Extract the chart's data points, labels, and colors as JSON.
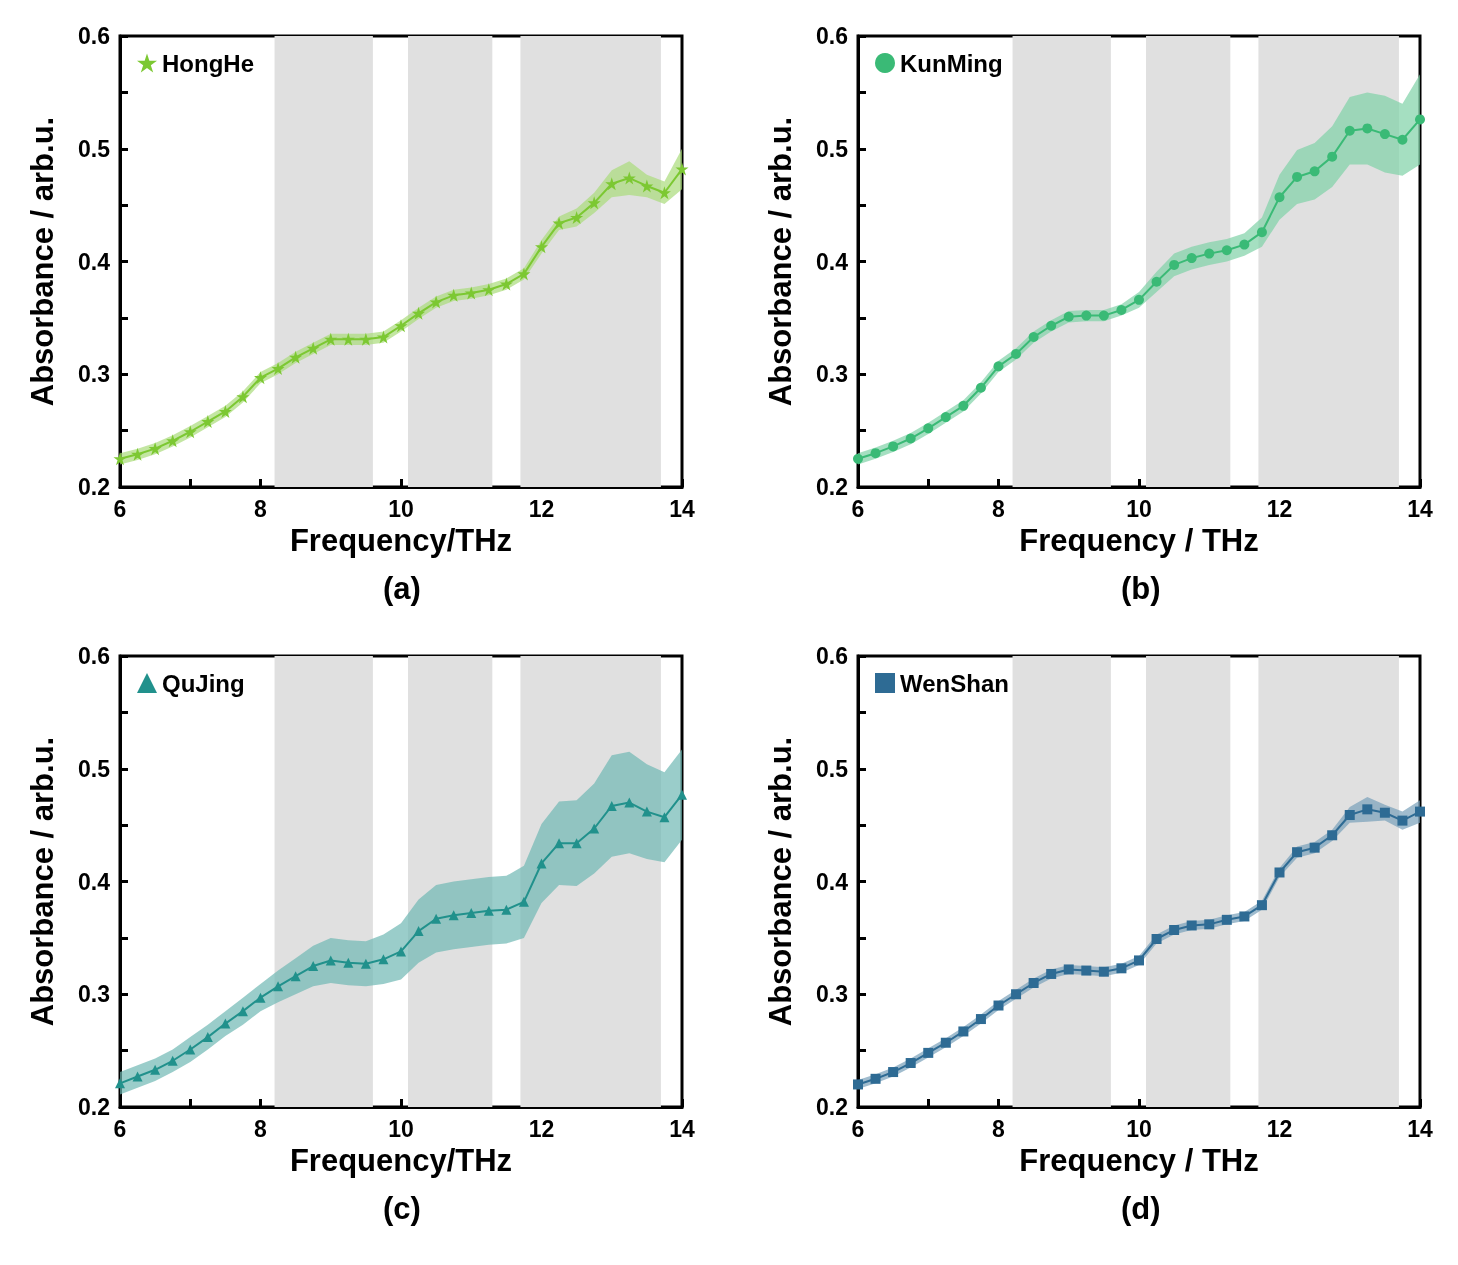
{
  "chart_data": [
    {
      "type": "line",
      "xlabel": "Frequency/THz",
      "ylabel": "Absorbance / arb.u.",
      "annotations": [
        "(a)"
      ],
      "marker": "star",
      "legend": "top left",
      "x": [
        6,
        6.25,
        6.5,
        6.75,
        7,
        7.25,
        7.5,
        7.75,
        8,
        8.25,
        8.5,
        8.75,
        9,
        9.25,
        9.5,
        9.75,
        10,
        10.25,
        10.5,
        10.75,
        11,
        11.25,
        11.5,
        11.75,
        12,
        12.25,
        12.5,
        12.75,
        13,
        13.25,
        13.5,
        13.75,
        14
      ],
      "xlim": [
        6,
        14
      ],
      "xticks": [
        6,
        {
          "value": 7,
          "label": null
        },
        8,
        {
          "value": 9,
          "label": null
        },
        10,
        {
          "value": 11,
          "label": null
        },
        12,
        {
          "value": 13,
          "label": null
        },
        14
      ],
      "ylim": [
        0.2,
        0.6
      ],
      "yticks": [
        0.2,
        {
          "value": 0.25,
          "label": null
        },
        0.3,
        {
          "value": 0.35,
          "label": null
        },
        0.4,
        {
          "value": 0.45,
          "label": null
        },
        0.5,
        {
          "value": 0.55,
          "label": null
        },
        0.6
      ],
      "bands": [
        {
          "axis": "x",
          "from": 8.2,
          "to": 9.6,
          "color": "#e0e0e0"
        },
        {
          "axis": "x",
          "from": 10.1,
          "to": 11.3,
          "color": "#e0e0e0"
        },
        {
          "axis": "x",
          "from": 11.7,
          "to": 13.7,
          "color": "#e0e0e0"
        }
      ],
      "series": [
        {
          "name": "HongHe",
          "color": "#7cc832",
          "values": [
            0.225,
            0.229,
            0.234,
            0.241,
            0.249,
            0.258,
            0.267,
            0.28,
            0.297,
            0.305,
            0.315,
            0.323,
            0.331,
            0.331,
            0.331,
            0.333,
            0.343,
            0.354,
            0.364,
            0.37,
            0.372,
            0.375,
            0.38,
            0.389,
            0.413,
            0.434,
            0.439,
            0.452,
            0.469,
            0.474,
            0.467,
            0.461,
            0.482
          ],
          "lower": [
            0.22,
            0.224,
            0.229,
            0.236,
            0.244,
            0.253,
            0.262,
            0.275,
            0.292,
            0.3,
            0.31,
            0.318,
            0.326,
            0.326,
            0.326,
            0.328,
            0.338,
            0.349,
            0.359,
            0.365,
            0.367,
            0.37,
            0.375,
            0.384,
            0.407,
            0.428,
            0.431,
            0.443,
            0.457,
            0.459,
            0.457,
            0.451,
            0.464
          ],
          "upper": [
            0.23,
            0.234,
            0.239,
            0.246,
            0.254,
            0.263,
            0.272,
            0.285,
            0.302,
            0.31,
            0.32,
            0.328,
            0.336,
            0.336,
            0.336,
            0.338,
            0.348,
            0.359,
            0.369,
            0.375,
            0.377,
            0.38,
            0.385,
            0.394,
            0.419,
            0.44,
            0.447,
            0.461,
            0.481,
            0.489,
            0.477,
            0.471,
            0.5
          ]
        }
      ]
    },
    {
      "type": "line",
      "xlabel": "Frequency / THz",
      "ylabel": "Absorbance / arb.u.",
      "annotations": [
        "(b)"
      ],
      "marker": "circle",
      "legend": "top left",
      "x": [
        6,
        6.25,
        6.5,
        6.75,
        7,
        7.25,
        7.5,
        7.75,
        8,
        8.25,
        8.5,
        8.75,
        9,
        9.25,
        9.5,
        9.75,
        10,
        10.25,
        10.5,
        10.75,
        11,
        11.25,
        11.5,
        11.75,
        12,
        12.25,
        12.5,
        12.75,
        13,
        13.25,
        13.5,
        13.75,
        14
      ],
      "xlim": [
        6,
        14
      ],
      "xticks": [
        6,
        {
          "value": 7,
          "label": null
        },
        8,
        {
          "value": 9,
          "label": null
        },
        10,
        {
          "value": 11,
          "label": null
        },
        12,
        {
          "value": 13,
          "label": null
        },
        14
      ],
      "ylim": [
        0.2,
        0.6
      ],
      "yticks": [
        0.2,
        {
          "value": 0.25,
          "label": null
        },
        0.3,
        {
          "value": 0.35,
          "label": null
        },
        0.4,
        {
          "value": 0.45,
          "label": null
        },
        0.5,
        {
          "value": 0.55,
          "label": null
        },
        0.6
      ],
      "bands": [
        {
          "axis": "x",
          "from": 8.2,
          "to": 9.6,
          "color": "#e0e0e0"
        },
        {
          "axis": "x",
          "from": 10.1,
          "to": 11.3,
          "color": "#e0e0e0"
        },
        {
          "axis": "x",
          "from": 11.7,
          "to": 13.7,
          "color": "#e0e0e0"
        }
      ],
      "series": [
        {
          "name": "KunMing",
          "color": "#3aba76",
          "values": [
            0.225,
            0.23,
            0.236,
            0.243,
            0.252,
            0.262,
            0.272,
            0.288,
            0.307,
            0.318,
            0.333,
            0.343,
            0.351,
            0.352,
            0.352,
            0.357,
            0.366,
            0.382,
            0.397,
            0.403,
            0.407,
            0.41,
            0.415,
            0.426,
            0.457,
            0.475,
            0.48,
            0.493,
            0.516,
            0.518,
            0.513,
            0.508,
            0.526
          ],
          "lower": [
            0.22,
            0.225,
            0.231,
            0.238,
            0.247,
            0.257,
            0.267,
            0.283,
            0.302,
            0.313,
            0.328,
            0.338,
            0.346,
            0.347,
            0.347,
            0.352,
            0.359,
            0.373,
            0.387,
            0.393,
            0.397,
            0.4,
            0.405,
            0.413,
            0.437,
            0.451,
            0.455,
            0.466,
            0.486,
            0.486,
            0.479,
            0.476,
            0.486
          ],
          "upper": [
            0.23,
            0.235,
            0.241,
            0.248,
            0.257,
            0.267,
            0.277,
            0.293,
            0.312,
            0.323,
            0.338,
            0.348,
            0.356,
            0.357,
            0.357,
            0.362,
            0.373,
            0.391,
            0.407,
            0.413,
            0.417,
            0.42,
            0.425,
            0.439,
            0.477,
            0.499,
            0.505,
            0.52,
            0.546,
            0.55,
            0.547,
            0.54,
            0.566
          ]
        }
      ]
    },
    {
      "type": "line",
      "xlabel": "Frequency/THz",
      "ylabel": "Absorbance / arb.u.",
      "annotations": [
        "(c)"
      ],
      "marker": "triangle",
      "legend": "top left",
      "x": [
        6,
        6.25,
        6.5,
        6.75,
        7,
        7.25,
        7.5,
        7.75,
        8,
        8.25,
        8.5,
        8.75,
        9,
        9.25,
        9.5,
        9.75,
        10,
        10.25,
        10.5,
        10.75,
        11,
        11.25,
        11.5,
        11.75,
        12,
        12.25,
        12.5,
        12.75,
        13,
        13.25,
        13.5,
        13.75,
        14
      ],
      "xlim": [
        6,
        14
      ],
      "xticks": [
        6,
        {
          "value": 7,
          "label": null
        },
        8,
        {
          "value": 9,
          "label": null
        },
        10,
        {
          "value": 11,
          "label": null
        },
        12,
        {
          "value": 13,
          "label": null
        },
        14
      ],
      "ylim": [
        0.2,
        0.6
      ],
      "yticks": [
        0.2,
        {
          "value": 0.25,
          "label": null
        },
        0.3,
        {
          "value": 0.35,
          "label": null
        },
        0.4,
        {
          "value": 0.45,
          "label": null
        },
        0.5,
        {
          "value": 0.55,
          "label": null
        },
        0.6
      ],
      "bands": [
        {
          "axis": "x",
          "from": 8.2,
          "to": 9.6,
          "color": "#e0e0e0"
        },
        {
          "axis": "x",
          "from": 10.1,
          "to": 11.3,
          "color": "#e0e0e0"
        },
        {
          "axis": "x",
          "from": 11.7,
          "to": 13.7,
          "color": "#e0e0e0"
        }
      ],
      "series": [
        {
          "name": "QuJing",
          "color": "#21918c",
          "values": [
            0.221,
            0.227,
            0.233,
            0.241,
            0.251,
            0.262,
            0.274,
            0.285,
            0.297,
            0.307,
            0.316,
            0.325,
            0.33,
            0.328,
            0.327,
            0.331,
            0.338,
            0.356,
            0.367,
            0.37,
            0.372,
            0.374,
            0.375,
            0.382,
            0.416,
            0.434,
            0.434,
            0.447,
            0.467,
            0.47,
            0.462,
            0.457,
            0.477
          ],
          "lower": [
            0.211,
            0.217,
            0.223,
            0.231,
            0.24,
            0.251,
            0.263,
            0.273,
            0.285,
            0.293,
            0.3,
            0.307,
            0.31,
            0.308,
            0.307,
            0.309,
            0.313,
            0.328,
            0.337,
            0.34,
            0.342,
            0.344,
            0.345,
            0.35,
            0.381,
            0.397,
            0.396,
            0.407,
            0.422,
            0.425,
            0.42,
            0.417,
            0.437
          ],
          "upper": [
            0.231,
            0.237,
            0.243,
            0.251,
            0.262,
            0.273,
            0.285,
            0.297,
            0.309,
            0.321,
            0.332,
            0.343,
            0.35,
            0.348,
            0.347,
            0.353,
            0.363,
            0.384,
            0.397,
            0.4,
            0.402,
            0.404,
            0.405,
            0.414,
            0.451,
            0.471,
            0.472,
            0.487,
            0.512,
            0.515,
            0.504,
            0.497,
            0.517
          ]
        }
      ]
    },
    {
      "type": "line",
      "xlabel": "Frequency / THz",
      "ylabel": "Absorbance / arb.u.",
      "annotations": [
        "(d)"
      ],
      "marker": "square",
      "legend": "top left",
      "x": [
        6,
        6.25,
        6.5,
        6.75,
        7,
        7.25,
        7.5,
        7.75,
        8,
        8.25,
        8.5,
        8.75,
        9,
        9.25,
        9.5,
        9.75,
        10,
        10.25,
        10.5,
        10.75,
        11,
        11.25,
        11.5,
        11.75,
        12,
        12.25,
        12.5,
        12.75,
        13,
        13.25,
        13.5,
        13.75,
        14
      ],
      "xlim": [
        6,
        14
      ],
      "xticks": [
        6,
        {
          "value": 7,
          "label": null
        },
        8,
        {
          "value": 9,
          "label": null
        },
        10,
        {
          "value": 11,
          "label": null
        },
        12,
        {
          "value": 13,
          "label": null
        },
        14
      ],
      "ylim": [
        0.2,
        0.6
      ],
      "yticks": [
        0.2,
        {
          "value": 0.25,
          "label": null
        },
        0.3,
        {
          "value": 0.35,
          "label": null
        },
        0.4,
        {
          "value": 0.45,
          "label": null
        },
        0.5,
        {
          "value": 0.55,
          "label": null
        },
        0.6
      ],
      "bands": [
        {
          "axis": "x",
          "from": 8.2,
          "to": 9.6,
          "color": "#e0e0e0"
        },
        {
          "axis": "x",
          "from": 10.1,
          "to": 11.3,
          "color": "#e0e0e0"
        },
        {
          "axis": "x",
          "from": 11.7,
          "to": 13.7,
          "color": "#e0e0e0"
        }
      ],
      "series": [
        {
          "name": "WenShan",
          "color": "#2e6b94",
          "values": [
            0.22,
            0.225,
            0.231,
            0.239,
            0.248,
            0.257,
            0.267,
            0.278,
            0.29,
            0.3,
            0.31,
            0.318,
            0.322,
            0.321,
            0.32,
            0.323,
            0.33,
            0.349,
            0.357,
            0.361,
            0.362,
            0.366,
            0.369,
            0.379,
            0.408,
            0.426,
            0.43,
            0.441,
            0.459,
            0.464,
            0.461,
            0.454,
            0.462
          ],
          "lower": [
            0.216,
            0.221,
            0.227,
            0.235,
            0.244,
            0.253,
            0.263,
            0.274,
            0.286,
            0.296,
            0.306,
            0.314,
            0.318,
            0.317,
            0.316,
            0.319,
            0.326,
            0.345,
            0.353,
            0.357,
            0.358,
            0.362,
            0.365,
            0.375,
            0.404,
            0.421,
            0.425,
            0.436,
            0.452,
            0.453,
            0.454,
            0.446,
            0.452
          ],
          "upper": [
            0.224,
            0.229,
            0.235,
            0.243,
            0.252,
            0.261,
            0.271,
            0.282,
            0.294,
            0.304,
            0.314,
            0.322,
            0.326,
            0.325,
            0.324,
            0.327,
            0.334,
            0.353,
            0.361,
            0.365,
            0.366,
            0.37,
            0.373,
            0.383,
            0.412,
            0.431,
            0.435,
            0.446,
            0.466,
            0.475,
            0.468,
            0.462,
            0.472
          ]
        }
      ]
    }
  ]
}
